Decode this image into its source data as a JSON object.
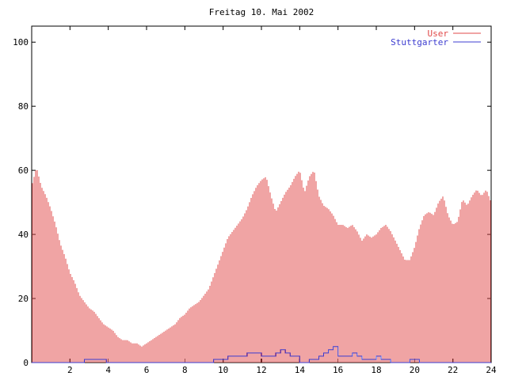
{
  "chart_data": {
    "type": "bar",
    "title": "Freitag 10. Mai 2002",
    "xlabel": "",
    "ylabel": "",
    "xlim": [
      0,
      24
    ],
    "ylim": [
      0,
      105
    ],
    "xticks": [
      2,
      4,
      6,
      8,
      10,
      12,
      14,
      16,
      18,
      20,
      22,
      24
    ],
    "yticks": [
      0,
      20,
      40,
      60,
      80,
      100
    ],
    "grid": false,
    "legend_position": "top-right",
    "series": [
      {
        "name": "User",
        "style": "impulses",
        "color": "#e04848",
        "points": [
          [
            0.0,
            55
          ],
          [
            0.25,
            61
          ],
          [
            0.5,
            55
          ],
          [
            0.75,
            52
          ],
          [
            1.0,
            48
          ],
          [
            1.25,
            43
          ],
          [
            1.5,
            37
          ],
          [
            1.75,
            33
          ],
          [
            2.0,
            28
          ],
          [
            2.25,
            25
          ],
          [
            2.5,
            21
          ],
          [
            2.75,
            19
          ],
          [
            3.0,
            17
          ],
          [
            3.25,
            16
          ],
          [
            3.5,
            14
          ],
          [
            3.75,
            12
          ],
          [
            4.0,
            11
          ],
          [
            4.25,
            10
          ],
          [
            4.5,
            8
          ],
          [
            4.75,
            7
          ],
          [
            5.0,
            7
          ],
          [
            5.25,
            6
          ],
          [
            5.5,
            6
          ],
          [
            5.75,
            5
          ],
          [
            6.0,
            6
          ],
          [
            6.25,
            7
          ],
          [
            6.5,
            8
          ],
          [
            6.75,
            9
          ],
          [
            7.0,
            10
          ],
          [
            7.25,
            11
          ],
          [
            7.5,
            12
          ],
          [
            7.75,
            14
          ],
          [
            8.0,
            15
          ],
          [
            8.25,
            17
          ],
          [
            8.5,
            18
          ],
          [
            8.75,
            19
          ],
          [
            9.0,
            21
          ],
          [
            9.25,
            23
          ],
          [
            9.5,
            27
          ],
          [
            9.75,
            31
          ],
          [
            10.0,
            35
          ],
          [
            10.25,
            39
          ],
          [
            10.5,
            41
          ],
          [
            10.75,
            43
          ],
          [
            11.0,
            45
          ],
          [
            11.25,
            48
          ],
          [
            11.5,
            52
          ],
          [
            11.75,
            55
          ],
          [
            12.0,
            57
          ],
          [
            12.25,
            58
          ],
          [
            12.5,
            52
          ],
          [
            12.75,
            47
          ],
          [
            13.0,
            50
          ],
          [
            13.25,
            53
          ],
          [
            13.5,
            55
          ],
          [
            13.75,
            58
          ],
          [
            14.0,
            60
          ],
          [
            14.25,
            53
          ],
          [
            14.5,
            58
          ],
          [
            14.75,
            60
          ],
          [
            15.0,
            52
          ],
          [
            15.25,
            49
          ],
          [
            15.5,
            48
          ],
          [
            15.75,
            46
          ],
          [
            16.0,
            43
          ],
          [
            16.25,
            43
          ],
          [
            16.5,
            42
          ],
          [
            16.75,
            43
          ],
          [
            17.0,
            41
          ],
          [
            17.25,
            38
          ],
          [
            17.5,
            40
          ],
          [
            17.75,
            39
          ],
          [
            18.0,
            40
          ],
          [
            18.25,
            42
          ],
          [
            18.5,
            43
          ],
          [
            18.75,
            41
          ],
          [
            19.0,
            38
          ],
          [
            19.25,
            35
          ],
          [
            19.5,
            32
          ],
          [
            19.75,
            32
          ],
          [
            20.0,
            36
          ],
          [
            20.25,
            42
          ],
          [
            20.5,
            46
          ],
          [
            20.75,
            47
          ],
          [
            21.0,
            46
          ],
          [
            21.25,
            50
          ],
          [
            21.5,
            52
          ],
          [
            21.75,
            46
          ],
          [
            22.0,
            43
          ],
          [
            22.25,
            44
          ],
          [
            22.5,
            51
          ],
          [
            22.75,
            49
          ],
          [
            23.0,
            52
          ],
          [
            23.25,
            54
          ],
          [
            23.5,
            52
          ],
          [
            23.75,
            54
          ],
          [
            24.0,
            50
          ]
        ]
      },
      {
        "name": "Stuttgarter",
        "style": "steps",
        "color": "#3c3cd0",
        "points": [
          [
            0.0,
            0
          ],
          [
            2.75,
            0
          ],
          [
            2.75,
            1
          ],
          [
            3.9,
            1
          ],
          [
            3.9,
            0
          ],
          [
            9.5,
            0
          ],
          [
            9.5,
            1
          ],
          [
            10.25,
            1
          ],
          [
            10.25,
            2
          ],
          [
            11.25,
            2
          ],
          [
            11.25,
            3
          ],
          [
            12.0,
            3
          ],
          [
            12.0,
            2
          ],
          [
            12.75,
            2
          ],
          [
            12.75,
            3
          ],
          [
            13.0,
            3
          ],
          [
            13.0,
            4
          ],
          [
            13.25,
            4
          ],
          [
            13.25,
            3
          ],
          [
            13.5,
            3
          ],
          [
            13.5,
            2
          ],
          [
            14.0,
            2
          ],
          [
            14.0,
            0
          ],
          [
            14.5,
            0
          ],
          [
            14.5,
            1
          ],
          [
            15.0,
            1
          ],
          [
            15.0,
            2
          ],
          [
            15.25,
            2
          ],
          [
            15.25,
            3
          ],
          [
            15.5,
            3
          ],
          [
            15.5,
            4
          ],
          [
            15.75,
            4
          ],
          [
            15.75,
            5
          ],
          [
            16.0,
            5
          ],
          [
            16.0,
            2
          ],
          [
            16.75,
            2
          ],
          [
            16.75,
            3
          ],
          [
            17.0,
            3
          ],
          [
            17.0,
            2
          ],
          [
            17.25,
            2
          ],
          [
            17.25,
            1
          ],
          [
            18.0,
            1
          ],
          [
            18.0,
            2
          ],
          [
            18.25,
            2
          ],
          [
            18.25,
            1
          ],
          [
            18.75,
            1
          ],
          [
            18.75,
            0
          ],
          [
            19.75,
            0
          ],
          [
            19.75,
            1
          ],
          [
            20.25,
            1
          ],
          [
            20.25,
            0
          ],
          [
            24.0,
            0
          ]
        ]
      }
    ]
  }
}
